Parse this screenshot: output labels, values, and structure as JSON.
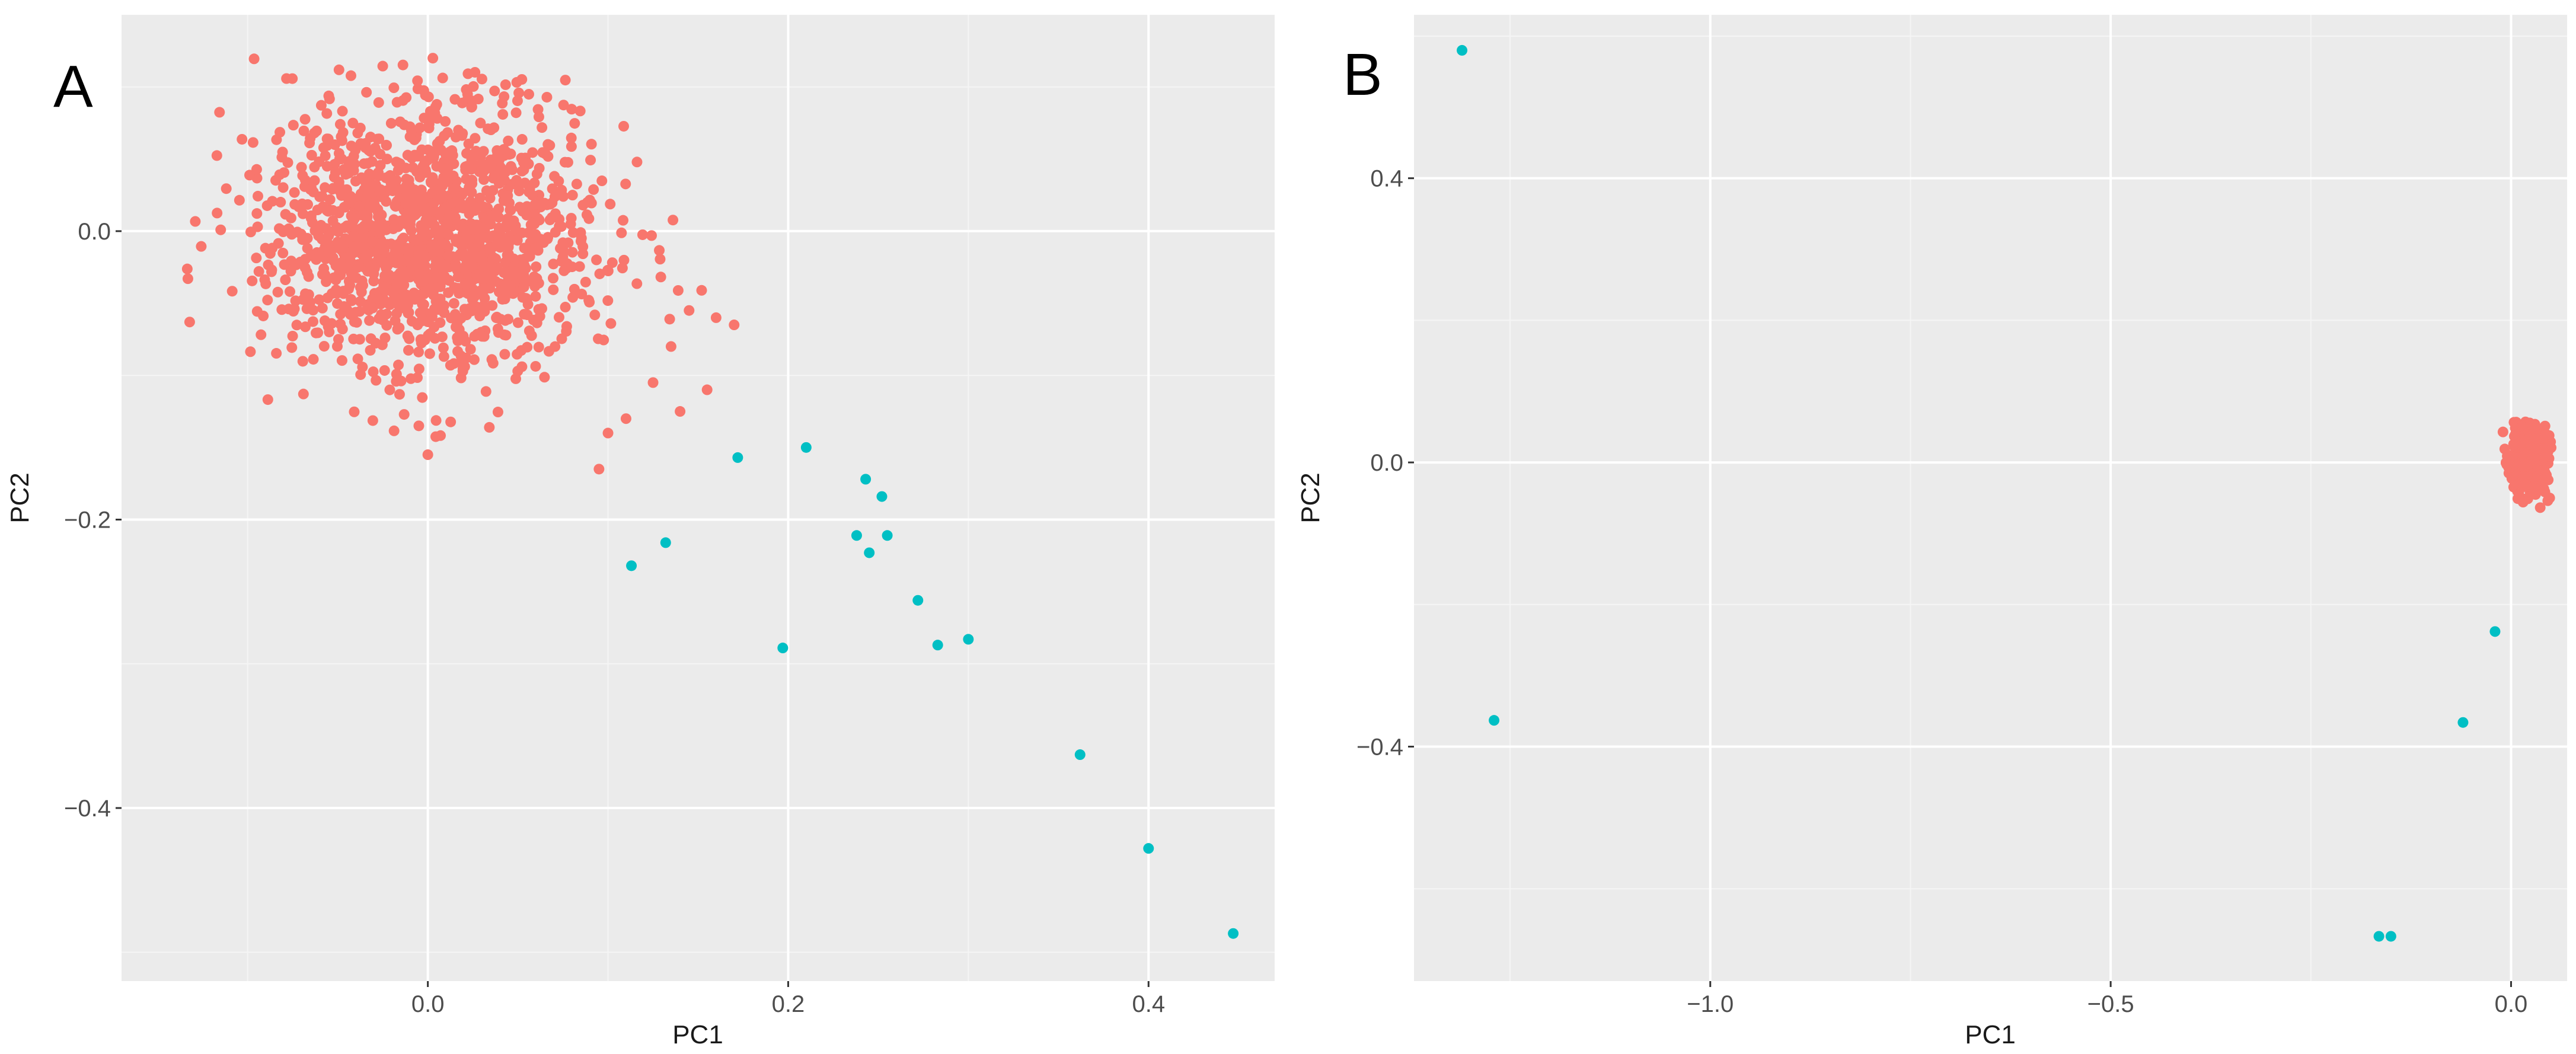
{
  "colors": {
    "panel_bg": "#EBEBEB",
    "grid_major": "#FFFFFF",
    "grid_minor": "#F5F5F5",
    "group_main": "#F8766D",
    "group_outlier": "#00BFC4"
  },
  "chart_data": [
    {
      "type": "scatter",
      "panel_label": "A",
      "xlabel": "PC1",
      "ylabel": "PC2",
      "xlim": [
        -0.17,
        0.47
      ],
      "ylim": [
        -0.52,
        0.15
      ],
      "xticks": [
        0.0,
        0.2,
        0.4
      ],
      "xtick_labels": [
        "0.0",
        "0.2",
        "0.4"
      ],
      "yticks": [
        0.0,
        -0.2,
        -0.4
      ],
      "ytick_labels": [
        "0.0",
        "−0.2",
        "−0.4"
      ],
      "xminor": [
        -0.1,
        0.1,
        0.3
      ],
      "yminor": [
        0.1,
        -0.1,
        -0.3,
        -0.5
      ],
      "grid": true,
      "series": [
        {
          "name": "main",
          "color_key": "group_main",
          "cluster": {
            "n": 1500,
            "seed": 7,
            "center_x": 0.0,
            "center_y": 0.0,
            "sd_x": 0.045,
            "sd_y": 0.045,
            "x_range": [
              -0.135,
              0.175
            ],
            "y_range": [
              -0.165,
              0.12
            ]
          },
          "x": [
            0.16,
            0.17,
            0.155,
            0.145,
            0.135,
            0.14,
            0.125,
            0.1,
            0.095,
            0.11,
            0.0,
            -0.005
          ],
          "y": [
            -0.06,
            -0.065,
            -0.11,
            -0.055,
            -0.08,
            -0.125,
            -0.105,
            -0.14,
            -0.165,
            -0.13,
            -0.155,
            -0.135
          ]
        },
        {
          "name": "outlier",
          "color_key": "group_outlier",
          "x": [
            0.172,
            0.21,
            0.243,
            0.252,
            0.238,
            0.255,
            0.245,
            0.272,
            0.113,
            0.132,
            0.197,
            0.283,
            0.3,
            0.362,
            0.4,
            0.447
          ],
          "y": [
            -0.157,
            -0.15,
            -0.172,
            -0.184,
            -0.211,
            -0.211,
            -0.223,
            -0.256,
            -0.232,
            -0.216,
            -0.289,
            -0.287,
            -0.283,
            -0.363,
            -0.428,
            -0.487
          ]
        }
      ]
    },
    {
      "type": "scatter",
      "panel_label": "B",
      "xlabel": "PC1",
      "ylabel": "PC2",
      "xlim": [
        -1.37,
        0.07
      ],
      "ylim": [
        -0.73,
        0.63
      ],
      "xticks": [
        -1.0,
        -0.5,
        0.0
      ],
      "xtick_labels": [
        "−1.0",
        "−0.5",
        "0.0"
      ],
      "yticks": [
        0.4,
        0.0,
        -0.4
      ],
      "ytick_labels": [
        "0.4",
        "0.0",
        "−0.4"
      ],
      "xminor": [
        -1.25,
        -0.75,
        -0.25
      ],
      "yminor": [
        0.6,
        0.2,
        -0.2,
        -0.6
      ],
      "grid": true,
      "series": [
        {
          "name": "main",
          "color_key": "group_main",
          "cluster": {
            "n": 320,
            "seed": 11,
            "center_x": 0.022,
            "center_y": 0.0,
            "sd_x": 0.012,
            "sd_y": 0.025,
            "x_range": [
              -0.015,
              0.052
            ],
            "y_range": [
              -0.07,
              0.06
            ]
          },
          "x": [],
          "y": []
        },
        {
          "name": "outlier",
          "color_key": "group_outlier",
          "x": [
            -1.31,
            -1.27,
            -0.02,
            -0.06,
            -0.165,
            -0.15
          ],
          "y": [
            0.58,
            -0.363,
            -0.238,
            -0.366,
            -0.667,
            -0.667
          ]
        }
      ]
    }
  ]
}
